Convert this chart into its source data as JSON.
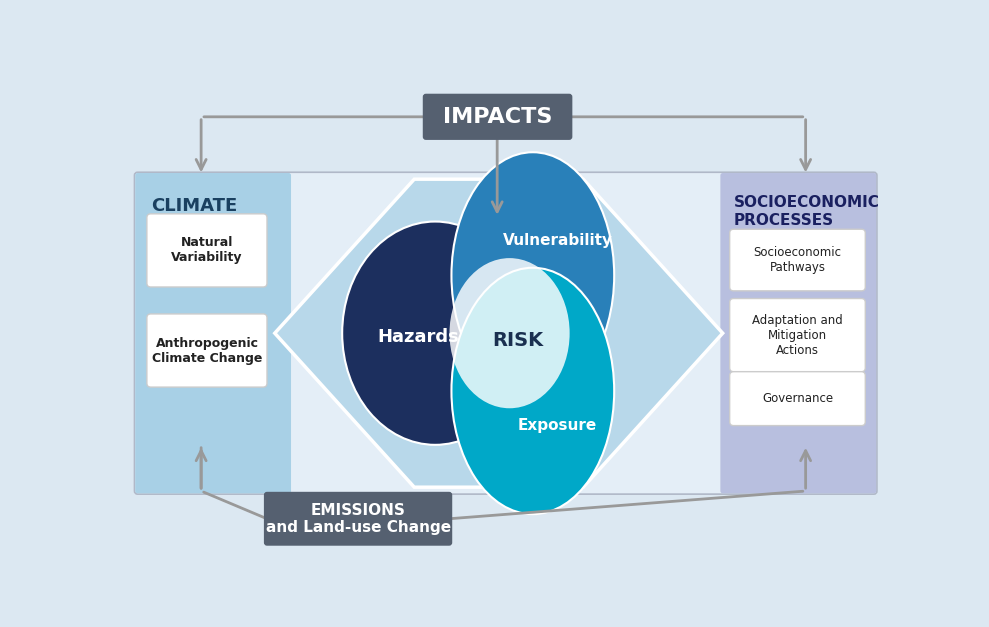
{
  "fig_bg": "#dce8f2",
  "main_bg": "#e4eef7",
  "climate_color": "#a8d0e6",
  "socio_color": "#b8bfdf",
  "arrow_fill": "#b8d8ea",
  "hazards_color": "#1c2f5e",
  "vulnerability_color": "#2980b9",
  "exposure_color": "#00a8c8",
  "risk_center_color": "#f0f5fa",
  "impacts_box_color": "#556070",
  "emissions_box_color": "#556070",
  "arrow_color": "#999999",
  "left_boxes": [
    "Natural\nVariability",
    "Anthropogenic\nClimate Change"
  ],
  "right_boxes": [
    "Socioeconomic\nPathways",
    "Adaptation and\nMitigation\nActions",
    "Governance"
  ],
  "impacts_label": "IMPACTS",
  "emissions_label": "EMISSIONS\nand Land-use Change",
  "climate_label": "CLIMATE",
  "socio_label": "SOCIOECONOMIC\nPROCESSES",
  "hazards_label": "Hazards",
  "vulnerability_label": "Vulnerability",
  "exposure_label": "Exposure",
  "risk_label": "RISK"
}
